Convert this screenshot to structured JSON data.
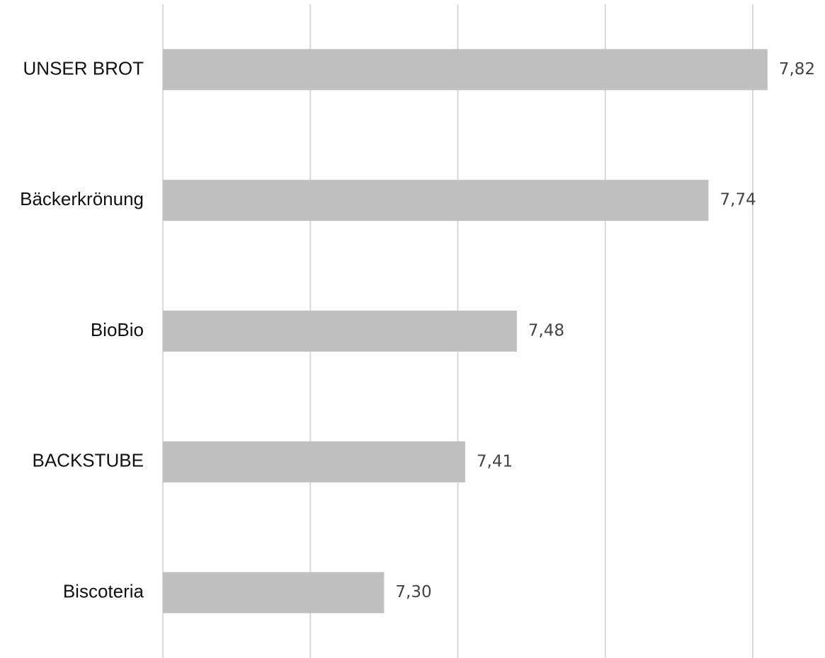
{
  "chart_data": {
    "type": "bar",
    "orientation": "horizontal",
    "title": "",
    "xlabel": "",
    "ylabel": "",
    "categories": [
      "UNSER BROT",
      "Bäckerkrönung",
      "BioBio",
      "BACKSTUBE",
      "Biscoteria"
    ],
    "values": [
      7.82,
      7.74,
      7.48,
      7.41,
      7.3
    ],
    "value_labels": [
      "7,82",
      "7,74",
      "7,48",
      "7,41",
      "7,30"
    ],
    "xlim": [
      7.0,
      7.8
    ],
    "grid": true,
    "legend": "none",
    "colors": {
      "bar": "#bfbfbf",
      "grid": "#d9d9d9"
    }
  }
}
